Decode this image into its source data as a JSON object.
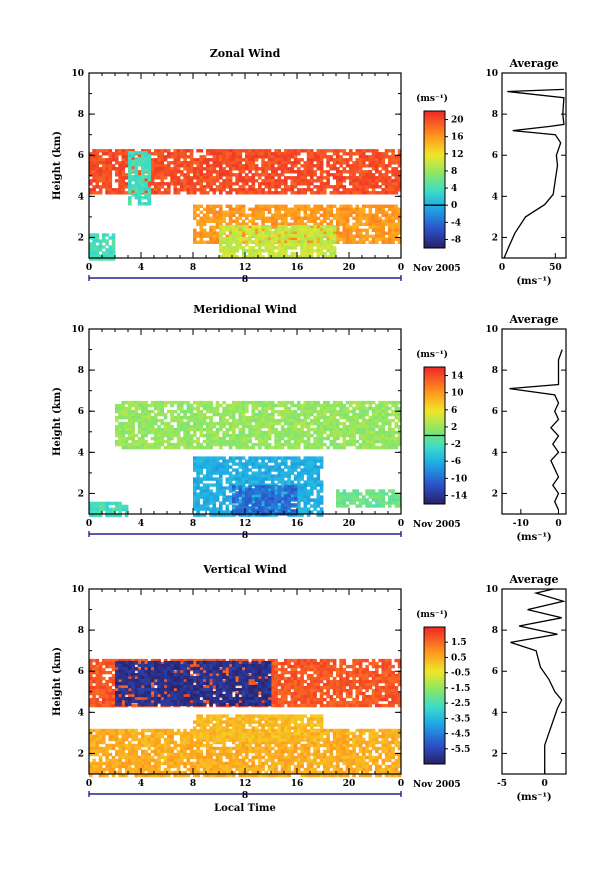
{
  "chart_data": [
    {
      "type": "heatmap",
      "title": "Zonal Wind",
      "ylabel": "Height (km)",
      "xlabel": "",
      "x_ticks": [
        "0",
        "4",
        "8",
        "12",
        "16",
        "20",
        "0"
      ],
      "y_ticks": [
        "2",
        "4",
        "6",
        "8",
        "10"
      ],
      "xlim": [
        0,
        24
      ],
      "ylim": [
        1,
        10
      ],
      "date_label": "Nov 2005",
      "day_label": "8",
      "colorbar": {
        "unit": "(ms⁻¹)",
        "ticks": [
          "20",
          "16",
          "12",
          "8",
          "4",
          "0",
          "-4",
          "-8"
        ],
        "range": [
          -10,
          22
        ],
        "zero_line": 0
      },
      "regions": [
        {
          "x": [
            0,
            24
          ],
          "y": [
            4.2,
            6.3
          ],
          "value": 20
        },
        {
          "x": [
            3,
            4.6
          ],
          "y": [
            3.6,
            6.2
          ],
          "value": 4
        },
        {
          "x": [
            8,
            24
          ],
          "y": [
            1.8,
            3.6
          ],
          "value": 16
        },
        {
          "x": [
            10,
            19
          ],
          "y": [
            1.0,
            2.6
          ],
          "value": 10
        },
        {
          "x": [
            0,
            2
          ],
          "y": [
            1.0,
            2.2
          ],
          "value": 4
        }
      ],
      "profile": {
        "title": "Average",
        "xlabel": "(ms⁻¹)",
        "x_ticks": [
          "0",
          "50"
        ],
        "xlim": [
          0,
          60
        ],
        "y_ticks": [
          "2",
          "4",
          "6",
          "8",
          "10"
        ],
        "ylim": [
          1,
          10
        ],
        "points": [
          [
            2,
            1
          ],
          [
            6,
            1.5
          ],
          [
            12,
            2.2
          ],
          [
            22,
            3.0
          ],
          [
            40,
            3.6
          ],
          [
            48,
            4.1
          ],
          [
            50,
            4.8
          ],
          [
            52,
            5.5
          ],
          [
            51,
            6.0
          ],
          [
            55,
            6.6
          ],
          [
            50,
            7.0
          ],
          [
            10,
            7.2
          ],
          [
            45,
            7.4
          ],
          [
            58,
            7.5
          ],
          [
            57,
            8.0
          ],
          [
            58,
            8.8
          ],
          [
            5,
            9.1
          ],
          [
            58,
            9.2
          ]
        ]
      }
    },
    {
      "type": "heatmap",
      "title": "Meridional Wind",
      "ylabel": "Height (km)",
      "xlabel": "",
      "x_ticks": [
        "0",
        "4",
        "8",
        "12",
        "16",
        "20",
        "0"
      ],
      "y_ticks": [
        "2",
        "4",
        "6",
        "8",
        "10"
      ],
      "xlim": [
        0,
        24
      ],
      "ylim": [
        1,
        10
      ],
      "date_label": "Nov 2005",
      "day_label": "8",
      "colorbar": {
        "unit": "(ms⁻¹)",
        "ticks": [
          "14",
          "10",
          "6",
          "2",
          "-2",
          "-6",
          "-10",
          "-14"
        ],
        "range": [
          -16,
          16
        ],
        "zero_line": 0
      },
      "regions": [
        {
          "x": [
            8,
            18
          ],
          "y": [
            1.0,
            3.8
          ],
          "value": -6
        },
        {
          "x": [
            11,
            16
          ],
          "y": [
            1.0,
            2.4
          ],
          "value": -10
        },
        {
          "x": [
            19,
            24
          ],
          "y": [
            1.4,
            2.2
          ],
          "value": 0
        },
        {
          "x": [
            0,
            3
          ],
          "y": [
            1.0,
            1.6
          ],
          "value": -2
        },
        {
          "x": [
            2,
            24
          ],
          "y": [
            4.2,
            6.5
          ],
          "value": 2
        }
      ],
      "profile": {
        "title": "Average",
        "xlabel": "(ms⁻¹)",
        "x_ticks": [
          "-10",
          "0"
        ],
        "xlim": [
          -15,
          2
        ],
        "y_ticks": [
          "2",
          "4",
          "6",
          "8",
          "10"
        ],
        "ylim": [
          1,
          10
        ],
        "points": [
          [
            0,
            1.2
          ],
          [
            -1,
            1.6
          ],
          [
            0,
            2.0
          ],
          [
            -1.5,
            2.4
          ],
          [
            0,
            2.8
          ],
          [
            -1,
            3.2
          ],
          [
            -2,
            3.6
          ],
          [
            0,
            4.0
          ],
          [
            -1.5,
            4.4
          ],
          [
            0,
            4.8
          ],
          [
            -2,
            5.2
          ],
          [
            0,
            5.6
          ],
          [
            -1,
            6.0
          ],
          [
            0,
            6.4
          ],
          [
            -1,
            6.8
          ],
          [
            -13,
            7.1
          ],
          [
            0,
            7.3
          ],
          [
            0,
            8.5
          ],
          [
            1,
            9.0
          ]
        ]
      }
    },
    {
      "type": "heatmap",
      "title": "Vertical Wind",
      "ylabel": "Height (km)",
      "xlabel": "Local Time",
      "x_ticks": [
        "0",
        "4",
        "8",
        "12",
        "16",
        "20",
        "0"
      ],
      "y_ticks": [
        "2",
        "4",
        "6",
        "8",
        "10"
      ],
      "xlim": [
        0,
        24
      ],
      "ylim": [
        1,
        10
      ],
      "date_label": "Nov 2005",
      "day_label": "8",
      "colorbar": {
        "unit": "(ms⁻¹)",
        "ticks": [
          "1.5",
          "0.5",
          "-0.5",
          "-1.5",
          "-2.5",
          "-3.5",
          "-4.5",
          "-5.5"
        ],
        "range": [
          -6.5,
          2.5
        ],
        "zero_line": null
      },
      "regions": [
        {
          "x": [
            0,
            24
          ],
          "y": [
            4.3,
            6.6
          ],
          "value": 1.8
        },
        {
          "x": [
            2,
            14
          ],
          "y": [
            4.4,
            6.5
          ],
          "value": -6
        },
        {
          "x": [
            0,
            24
          ],
          "y": [
            1.0,
            3.2
          ],
          "value": 0.5
        },
        {
          "x": [
            8,
            18
          ],
          "y": [
            2.6,
            3.9
          ],
          "value": 0.3
        }
      ],
      "profile": {
        "title": "Average",
        "xlabel": "(ms⁻¹)",
        "x_ticks": [
          "-5",
          "0"
        ],
        "xlim": [
          -5,
          2.5
        ],
        "y_ticks": [
          "2",
          "4",
          "6",
          "8",
          "10"
        ],
        "ylim": [
          1,
          10
        ],
        "points": [
          [
            0,
            1
          ],
          [
            0,
            2.4
          ],
          [
            0.5,
            3.0
          ],
          [
            1.0,
            3.6
          ],
          [
            1.5,
            4.2
          ],
          [
            2.0,
            4.6
          ],
          [
            1.2,
            5.0
          ],
          [
            0.5,
            5.6
          ],
          [
            -0.5,
            6.2
          ],
          [
            -1.0,
            7.0
          ],
          [
            -4,
            7.4
          ],
          [
            1.5,
            7.8
          ],
          [
            -3,
            8.2
          ],
          [
            2,
            8.6
          ],
          [
            -2,
            9.0
          ],
          [
            2.2,
            9.4
          ],
          [
            -1,
            9.8
          ],
          [
            1,
            10
          ]
        ]
      }
    }
  ]
}
